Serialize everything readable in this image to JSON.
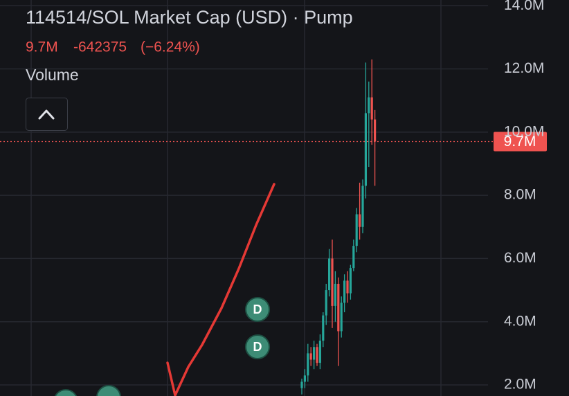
{
  "chart_data": {
    "type": "candlestick",
    "title": "114514/SOL Market Cap (USD) · Pump",
    "price": "9.7M",
    "change": "-642375",
    "change_pct": "(−6.24%)",
    "indicator": "Volume",
    "categories": [
      null,
      null,
      null,
      null,
      null,
      null,
      null,
      null,
      null,
      null,
      null,
      null,
      null,
      null,
      null,
      null,
      null,
      null,
      null,
      null,
      null,
      null,
      null,
      null,
      null
    ],
    "open": [
      1900000,
      2100000,
      2300000,
      3000000,
      2800000,
      3200000,
      2700000,
      3400000,
      4200000,
      5000000,
      6000000,
      4500000,
      5200000,
      3700000,
      4600000,
      5300000,
      4900000,
      5700000,
      6400000,
      7400000,
      7000000,
      8300000,
      10600000,
      11100000,
      10400000
    ],
    "high": [
      2200000,
      2500000,
      3300000,
      3200000,
      3400000,
      3300000,
      3600000,
      4300000,
      5200000,
      6300000,
      6600000,
      5600000,
      5400000,
      4800000,
      5500000,
      5600000,
      5800000,
      6600000,
      7600000,
      8400000,
      8500000,
      12200000,
      11600000,
      12300000,
      10700000
    ],
    "low": [
      1700000,
      1900000,
      2100000,
      2600000,
      2500000,
      2600000,
      2500000,
      3200000,
      3900000,
      4800000,
      3800000,
      4000000,
      2600000,
      3500000,
      4300000,
      4600000,
      4700000,
      5600000,
      6200000,
      6600000,
      6800000,
      7900000,
      8900000,
      9600000,
      8300000
    ],
    "close": [
      2100000,
      2300000,
      3000000,
      2800000,
      3200000,
      2700000,
      3400000,
      4200000,
      5000000,
      6000000,
      4500000,
      5200000,
      3700000,
      4600000,
      5300000,
      4900000,
      5700000,
      6400000,
      7400000,
      7000000,
      8300000,
      10600000,
      11100000,
      10400000,
      9700000
    ],
    "up_color": "#26a69a",
    "down_color": "#ef5350",
    "ylim": [
      1650000,
      14180000
    ],
    "yticks": [
      {
        "value": 2000000,
        "label": "2.0M"
      },
      {
        "value": 4000000,
        "label": "4.0M"
      },
      {
        "value": 6000000,
        "label": "6.0M"
      },
      {
        "value": 8000000,
        "label": "8.0M"
      },
      {
        "value": 10000000,
        "label": "10.0M"
      },
      {
        "value": 12000000,
        "label": "12.0M"
      },
      {
        "value": 14000000,
        "label": "14.0M"
      }
    ],
    "grid": true,
    "last_price": {
      "value": 9700000,
      "label": "9.7M"
    }
  }
}
